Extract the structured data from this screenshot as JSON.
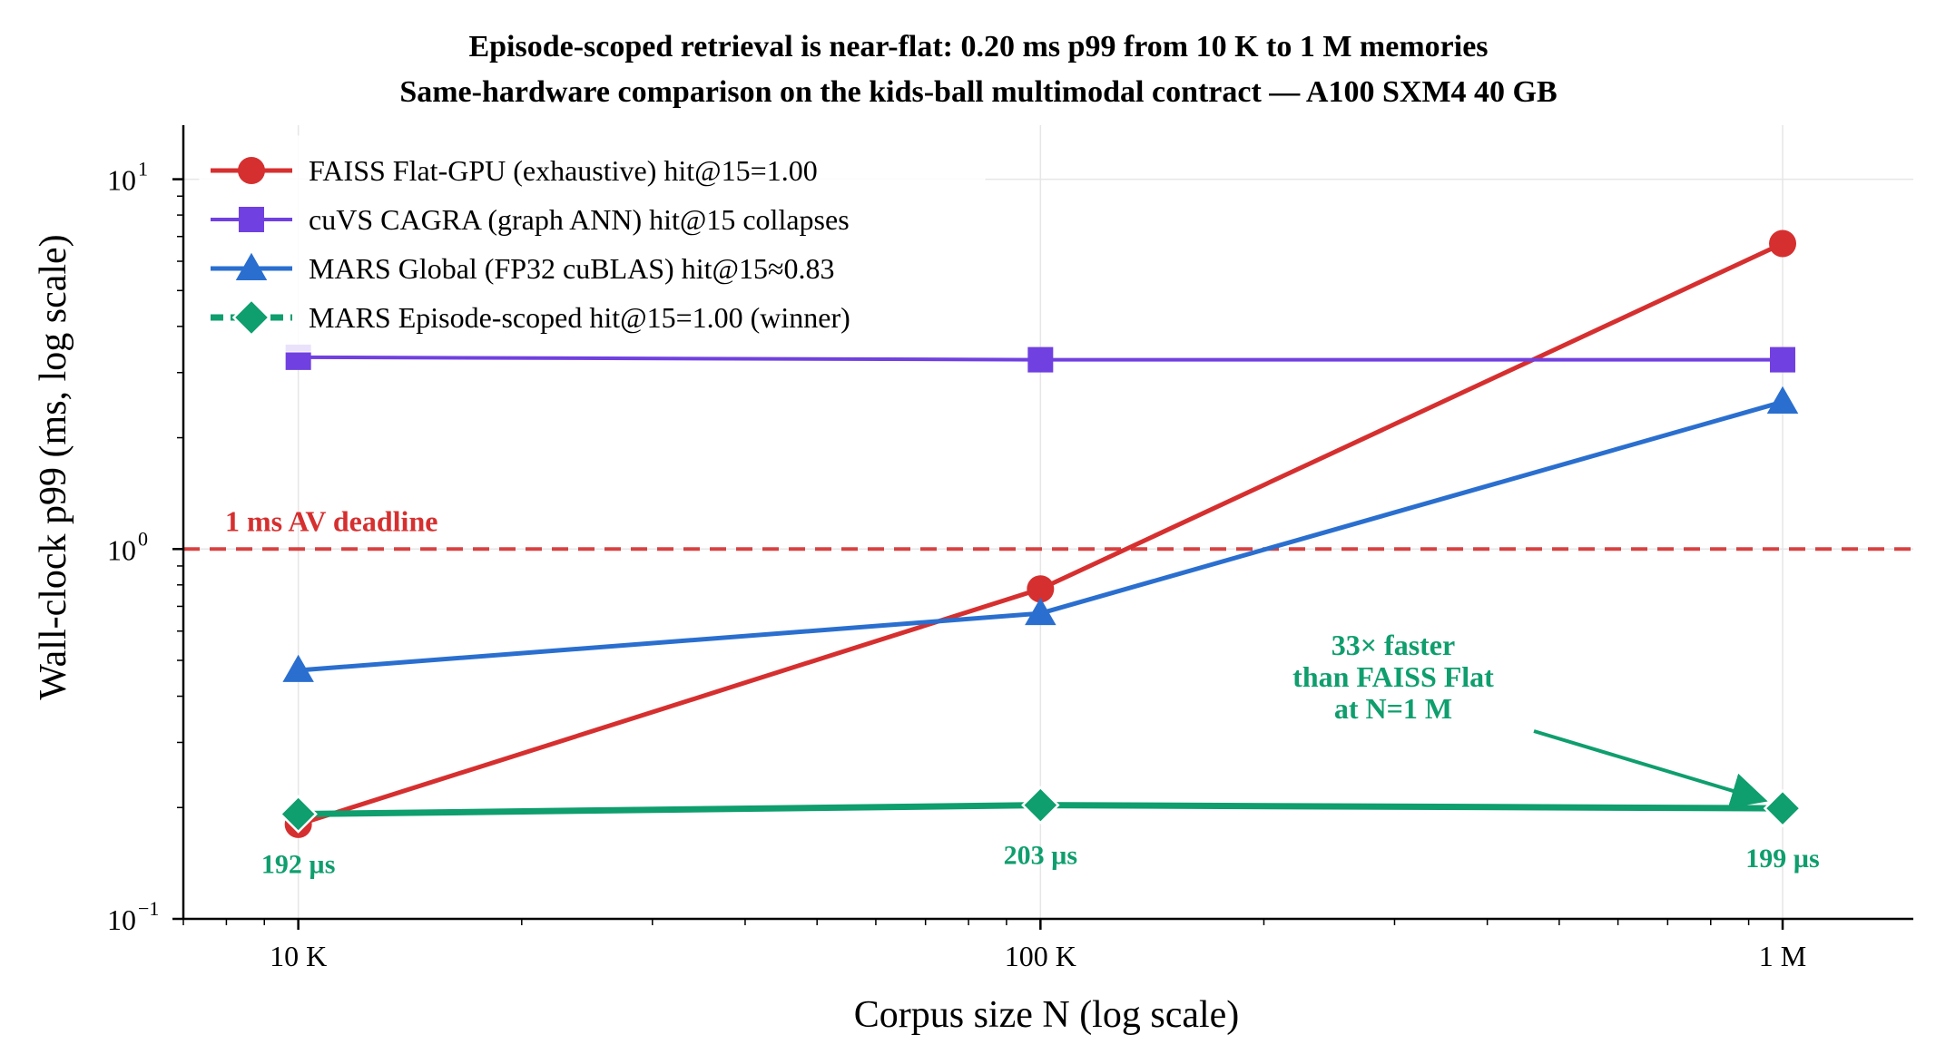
{
  "chart_data": {
    "type": "line",
    "title": "Episode-scoped retrieval is near-flat: 0.20 ms p99 from 10 K to 1 M memories",
    "subtitle": "Same-hardware comparison on the kids-ball multimodal contract — A100 SXM4 40 GB",
    "xlabel": "Corpus size N (log scale)",
    "ylabel": "Wall-clock p99 (ms, log scale)",
    "x_scale": "log",
    "y_scale": "log",
    "x": [
      10000,
      100000,
      1000000
    ],
    "xlim": [
      7000,
      1500000
    ],
    "ylim": [
      0.1,
      14
    ],
    "x_ticks": [
      {
        "value": 10000,
        "label": "10 K"
      },
      {
        "value": 100000,
        "label": "100 K"
      },
      {
        "value": 1000000,
        "label": "1 M"
      }
    ],
    "y_ticks": [
      {
        "value": 0.1,
        "base": "10",
        "exp": "−1"
      },
      {
        "value": 1,
        "base": "10",
        "exp": "0"
      },
      {
        "value": 10,
        "base": "10",
        "exp": "1"
      }
    ],
    "grid": true,
    "legend_position": "top-left",
    "series": [
      {
        "name": "FAISS Flat-GPU (exhaustive)  hit@15=1.00",
        "values": [
          0.18,
          0.78,
          6.7
        ],
        "color": "#d62f2f",
        "marker": "circle",
        "dash": "solid",
        "width": 5
      },
      {
        "name": "cuVS CAGRA (graph ANN)  hit@15 collapses",
        "values": [
          3.3,
          3.25,
          3.25
        ],
        "color": "#7040e0",
        "marker": "square",
        "dash": "solid",
        "width": 4
      },
      {
        "name": "MARS Global (FP32 cuBLAS)  hit@15≈0.83",
        "values": [
          0.47,
          0.67,
          2.5
        ],
        "color": "#2a6fcf",
        "marker": "triangle",
        "dash": "solid",
        "width": 5
      },
      {
        "name": "MARS Episode-scoped  hit@15=1.00  (winner)",
        "values": [
          0.192,
          0.203,
          0.199
        ],
        "color": "#0f9e6e",
        "marker": "diamond",
        "dash": "legend-dashed",
        "width": 7
      }
    ],
    "reference_line": {
      "y": 1.0,
      "label": "1 ms AV deadline",
      "color": "#d62f2f"
    },
    "point_labels": [
      {
        "x": 10000,
        "text": "192 µs"
      },
      {
        "x": 100000,
        "text": "203 µs"
      },
      {
        "x": 1000000,
        "text": "199 µs"
      }
    ],
    "annotation": {
      "lines": [
        "33× faster",
        "than FAISS Flat",
        "at N=1 M"
      ],
      "color": "#0f9e6e",
      "arrow_to": {
        "x": 1000000,
        "y": 0.199
      }
    }
  }
}
